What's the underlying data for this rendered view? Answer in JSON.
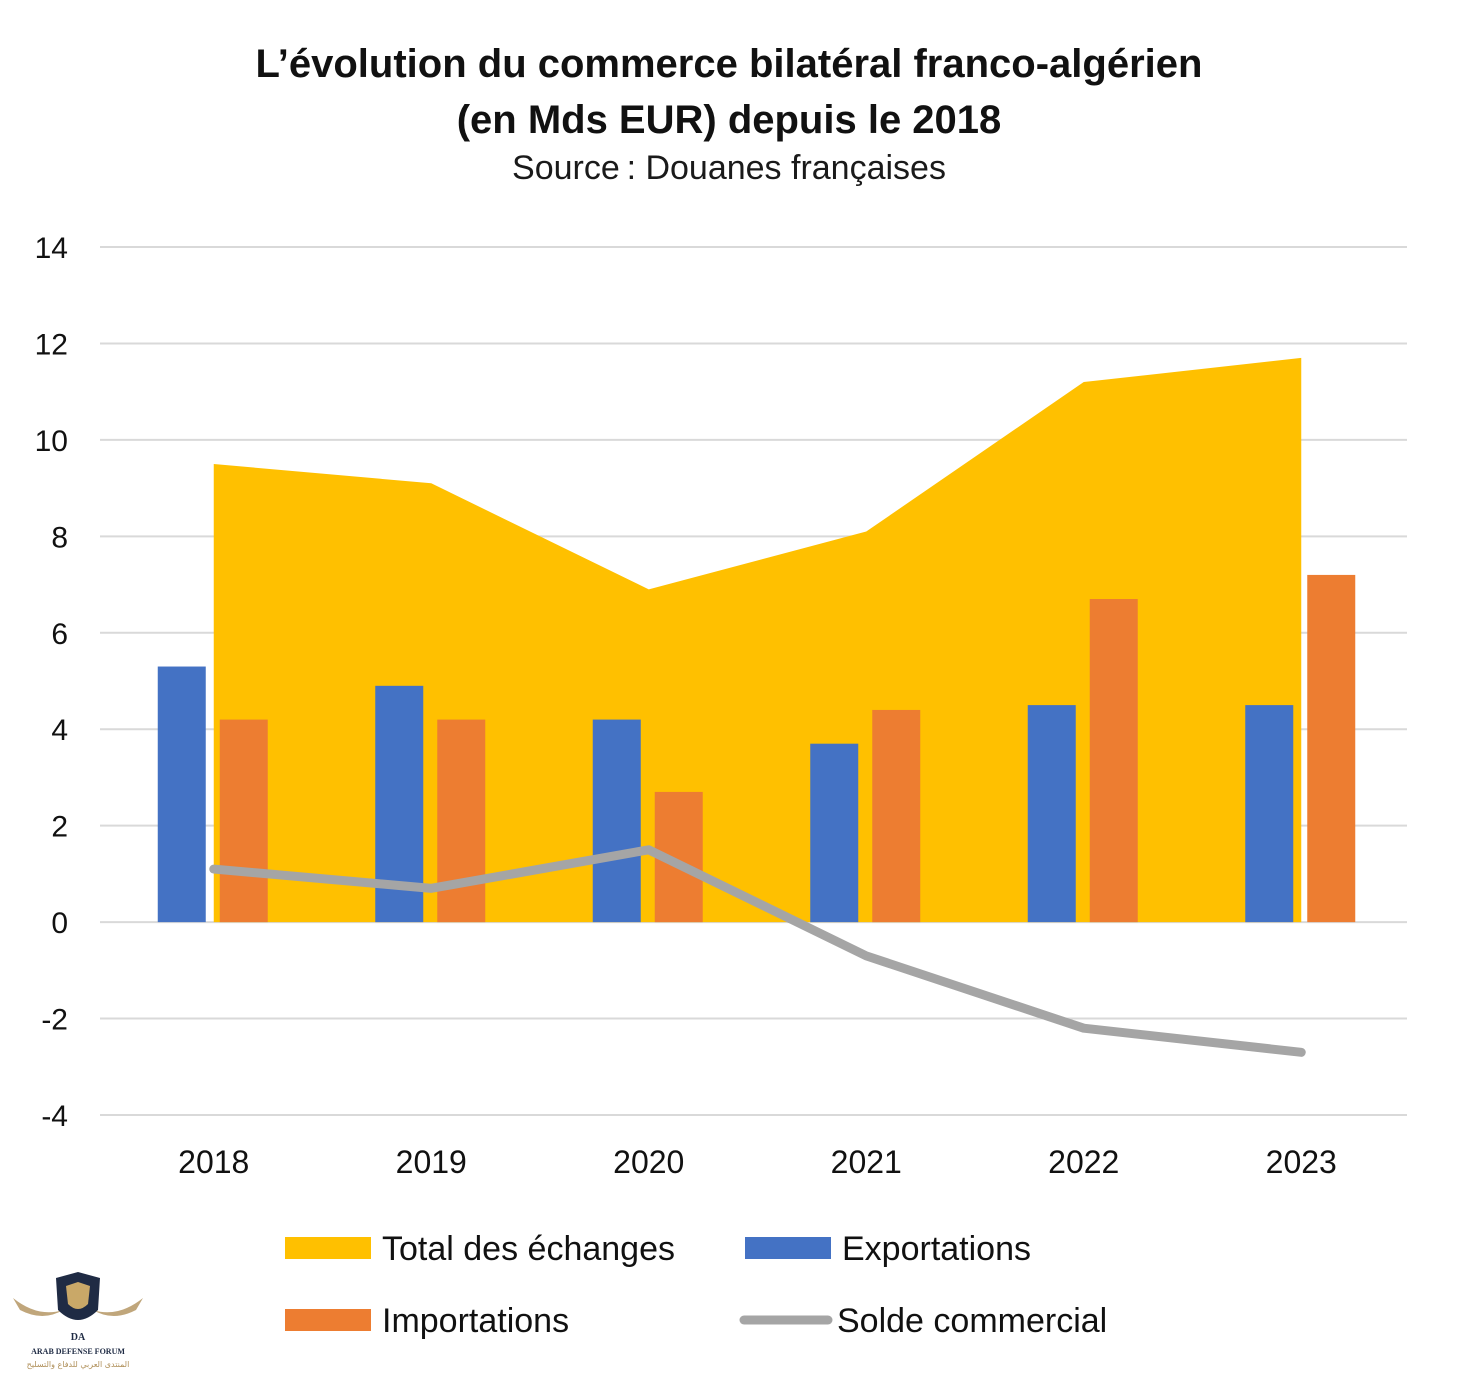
{
  "chart_data": {
    "type": "bar",
    "title": "L’évolution du commerce bilatéral franco-algérien",
    "title_line2": "(en Mds EUR) depuis le 2018",
    "subtitle": "Source : Douanes françaises",
    "categories": [
      "2018",
      "2019",
      "2020",
      "2021",
      "2022",
      "2023"
    ],
    "series": [
      {
        "name": "Total des échanges",
        "type": "area",
        "color": "#FFC000",
        "values": [
          9.5,
          9.1,
          6.9,
          8.1,
          11.2,
          11.7
        ]
      },
      {
        "name": "Exportations",
        "type": "bar",
        "color": "#4472C4",
        "values": [
          5.3,
          4.9,
          4.2,
          3.7,
          4.5,
          4.5
        ]
      },
      {
        "name": "Importations",
        "type": "bar",
        "color": "#ED7D31",
        "values": [
          4.2,
          4.2,
          2.7,
          4.4,
          6.7,
          7.2
        ]
      },
      {
        "name": "Solde commercial",
        "type": "line",
        "color": "#A5A5A5",
        "values": [
          1.1,
          0.7,
          1.5,
          -0.7,
          -2.2,
          -2.7
        ]
      }
    ],
    "yticks": [
      "14",
      "12",
      "10",
      "8",
      "6",
      "4",
      "2",
      "0",
      "-2",
      "-4"
    ],
    "ylim": [
      -4,
      14
    ],
    "grid": true,
    "legend_position": "bottom"
  },
  "watermark": {
    "logo_letters": "DA",
    "name": "ARAB DEFENSE FORUM",
    "arabic": "المنتدى العربي للدفاع والتسليح"
  }
}
